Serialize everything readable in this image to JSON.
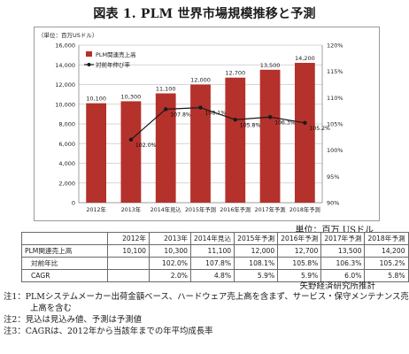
{
  "title": "図表 1. PLM 世界市場規模推移と予測",
  "chart_data": {
    "type": "bar",
    "unit_label": "（単位：百万USドル）",
    "categories": [
      "2012年",
      "2013年",
      "2014年見込",
      "2015年予測",
      "2016年予測",
      "2017年予測",
      "2018年予測"
    ],
    "series": [
      {
        "name": "PLM関連売上高",
        "type": "bar",
        "axis": "left",
        "values": [
          10100,
          10300,
          11100,
          12000,
          12700,
          13500,
          14200
        ],
        "labels": [
          "10,100",
          "10,300",
          "11,100",
          "12,000",
          "12,700",
          "13,500",
          "14,200"
        ],
        "color": "#b5312b"
      },
      {
        "name": "対前年伸び率",
        "type": "line",
        "axis": "right",
        "values": [
          null,
          102.0,
          107.8,
          108.1,
          105.8,
          106.3,
          105.2
        ],
        "labels": [
          "",
          "102.0%",
          "107.8%",
          "108.1%",
          "105.8%",
          "106.3%",
          "105.2%"
        ],
        "color": "#1a1a1a"
      }
    ],
    "ylim": [
      0,
      16000
    ],
    "yticks": [
      "0",
      "2,000",
      "4,000",
      "6,000",
      "8,000",
      "10,000",
      "12,000",
      "14,000",
      "16,000"
    ],
    "y2lim": [
      90,
      120
    ],
    "y2ticks": [
      "90%",
      "95%",
      "100%",
      "105%",
      "110%",
      "115%",
      "120%"
    ],
    "grid": true,
    "legend": "top-left"
  },
  "unit_note": "単位：百万 USドル",
  "table": {
    "headers": [
      "",
      "2012年",
      "2013年",
      "2014年見込",
      "2015年予測",
      "2016年予測",
      "2017年予測",
      "2018年予測"
    ],
    "rows": [
      {
        "label": "PLM関連売上高",
        "values": [
          "10,100",
          "10,300",
          "11,100",
          "12,000",
          "12,700",
          "13,500",
          "14,200"
        ]
      },
      {
        "label": "対前年比",
        "values": [
          "",
          "102.0%",
          "107.8%",
          "108.1%",
          "105.8%",
          "106.3%",
          "105.2%"
        ]
      },
      {
        "label": "CAGR",
        "values": [
          "",
          "2.0%",
          "4.8%",
          "5.9%",
          "5.9%",
          "6.0%",
          "5.8%"
        ]
      }
    ]
  },
  "source": "矢野経済研究所推計",
  "notes": [
    "注1：PLMシステムメーカー出荷金額ベース、ハードウェア売上高を含まず、サービス・保守メンテナンス売",
    "上高を含む",
    "注2：見込は見込み値、予測は予測値",
    "注3：CAGRは、2012年から当該年までの年平均成長率"
  ]
}
